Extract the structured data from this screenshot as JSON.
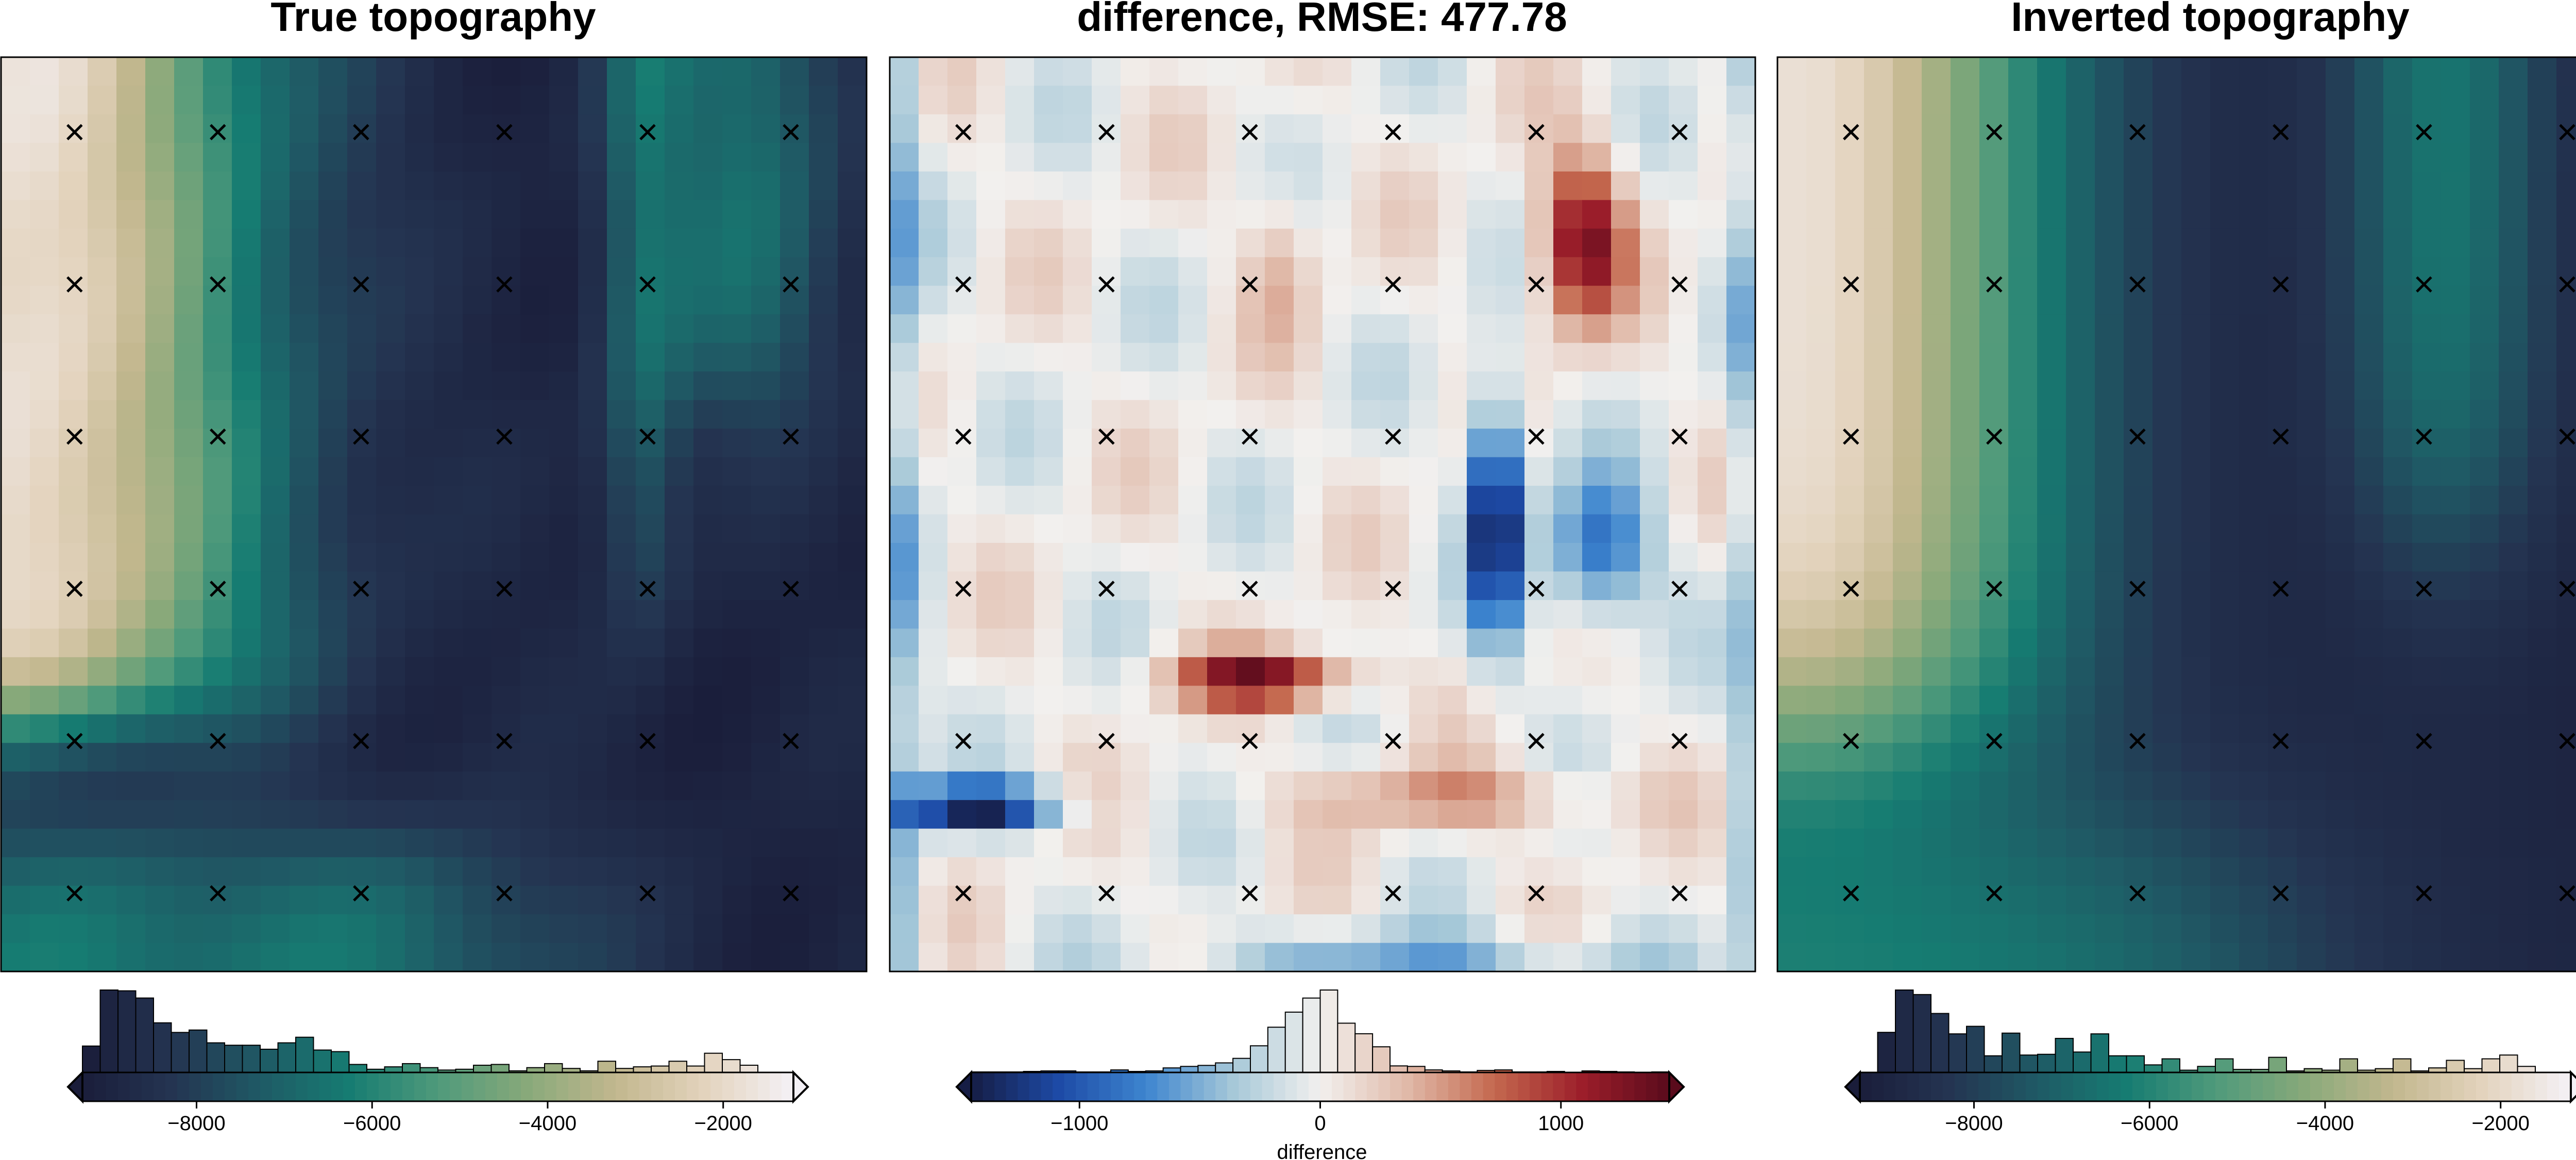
{
  "chart_data": [
    {
      "type": "heatmap",
      "title": "True topography",
      "colormap": "gist_earth-like (dark navy → teal → green → tan → white)",
      "clim": [
        -9300,
        -1200
      ],
      "colorbar": {
        "ticks": [
          -8000,
          -6000,
          -4000,
          -2000
        ],
        "tick_labels": [
          "−8000",
          "−6000",
          "−4000",
          "−2000"
        ],
        "label": "",
        "extend": "both"
      },
      "field": "true",
      "station_marks": "x",
      "station_rows": 6,
      "station_cols": 6
    },
    {
      "type": "heatmap",
      "title": "difference, RMSE: 477.78",
      "colormap": "diverging blue-white-red",
      "clim": [
        -1450,
        1450
      ],
      "colorbar": {
        "ticks": [
          -1000,
          0,
          1000
        ],
        "tick_labels": [
          "−1000",
          "0",
          "1000"
        ],
        "label": "difference",
        "extend": "both"
      },
      "field": "difference",
      "station_marks": "x",
      "station_rows": 6,
      "station_cols": 6
    },
    {
      "type": "heatmap",
      "title": "Inverted topography",
      "colormap": "gist_earth-like (dark navy → teal → green → tan → white)",
      "clim": [
        -9300,
        -1200
      ],
      "colorbar": {
        "ticks": [
          -8000,
          -6000,
          -4000,
          -2000
        ],
        "tick_labels": [
          "−8000",
          "−6000",
          "−4000",
          "−2000"
        ],
        "label": "",
        "extend": "both"
      },
      "field": "inverted",
      "station_marks": "x",
      "station_rows": 6,
      "station_cols": 6
    }
  ],
  "colors": {
    "topo_stops": [
      "#1a1d3a",
      "#243451",
      "#1f5a65",
      "#167c72",
      "#4f9a7b",
      "#88a97a",
      "#c2b78e",
      "#e3d3bd",
      "#f4f1f6"
    ],
    "diff_stops": [
      "#161d45",
      "#1d4aa6",
      "#3d85cf",
      "#a6c8d8",
      "#f2f0ee",
      "#e0b9a8",
      "#c4684e",
      "#9c1e2a",
      "#5a0b1c"
    ]
  }
}
